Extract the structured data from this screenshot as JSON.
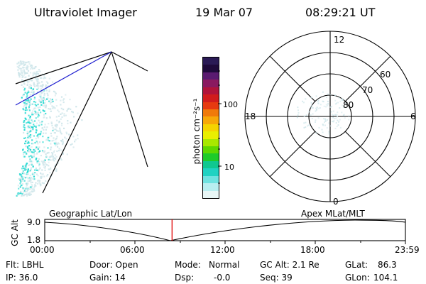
{
  "header": {
    "title": "Ultraviolet Imager",
    "date": "19 Mar 07",
    "time": "08:29:21 UT"
  },
  "colorbar": {
    "unit_label": "photon cm⁻²s⁻¹",
    "tick_labels": [
      "100",
      "10"
    ],
    "colors": [
      "#2a1a55",
      "#1e0a3a",
      "#5a1b70",
      "#8a1a60",
      "#b0143a",
      "#d11c1c",
      "#e63a10",
      "#f07a0a",
      "#f7a808",
      "#f5d400",
      "#e9ef00",
      "#a8e800",
      "#5fd800",
      "#1ecb2a",
      "#10c890",
      "#20d2c2",
      "#6fe2e0",
      "#b8eef0",
      "#e8f6f6"
    ]
  },
  "polar": {
    "labels": [
      "12",
      "18",
      "6",
      "0",
      "80",
      "70",
      "60"
    ]
  },
  "timeline": {
    "axis_label": "GC Alt",
    "y_ticks": [
      "9.0",
      "1.8"
    ],
    "left_label": "Geographic Lat/Lon",
    "right_label": "Apex MLat/MLT",
    "x_ticks": [
      "00:00",
      "06:00",
      "12:00",
      "18:00",
      "23:59"
    ],
    "current_time_fraction": 0.353
  },
  "status": {
    "col1": [
      "Flt: LBHL",
      "IP: 36.0"
    ],
    "col2": [
      "Door: Open",
      "Gain: 14"
    ],
    "col3_labels": [
      "Mode:",
      "Dsp:"
    ],
    "col3_values": [
      "Normal",
      "-0.0"
    ],
    "col4": [
      "GC Alt: 2.1 Re",
      "Seq: 39"
    ],
    "col5_labels": [
      "GLat:",
      "GLon:"
    ],
    "col5_values": [
      "86.3",
      "104.1"
    ]
  },
  "colors": {
    "auroral_cyan": "#20d8d0",
    "auroral_pale": "#cfe6ea",
    "terminator_line": "#2020d0",
    "time_marker": "#e00000"
  }
}
